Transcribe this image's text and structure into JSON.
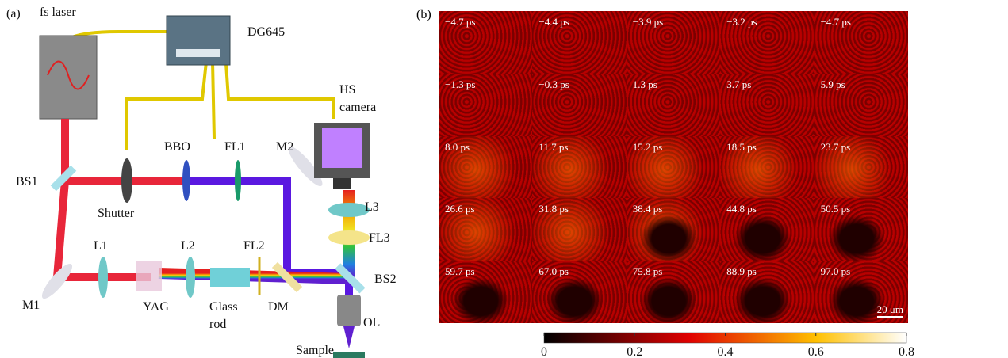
{
  "panel_a": {
    "label": "(a)",
    "components": [
      {
        "lines": [
          "fs laser"
        ]
      },
      {
        "lines": [
          "DG645"
        ]
      },
      {
        "lines": [
          "HS",
          "camera"
        ]
      },
      {
        "lines": [
          "BBO"
        ]
      },
      {
        "lines": [
          "FL1"
        ]
      },
      {
        "lines": [
          "M2"
        ]
      },
      {
        "lines": [
          "BS1"
        ]
      },
      {
        "lines": [
          "Shutter"
        ]
      },
      {
        "lines": [
          "L3"
        ]
      },
      {
        "lines": [
          "FL3"
        ]
      },
      {
        "lines": [
          "L1"
        ]
      },
      {
        "lines": [
          "L2"
        ]
      },
      {
        "lines": [
          "FL2"
        ]
      },
      {
        "lines": [
          "BS2"
        ]
      },
      {
        "lines": [
          "M1"
        ]
      },
      {
        "lines": [
          "YAG"
        ]
      },
      {
        "lines": [
          "Glass",
          "rod"
        ]
      },
      {
        "lines": [
          "DM"
        ]
      },
      {
        "lines": [
          "OL"
        ]
      },
      {
        "lines": [
          "Sample"
        ]
      }
    ]
  },
  "panel_b": {
    "label": "(b)",
    "frames": [
      "−4.7 ps",
      "−4.4 ps",
      "−3.9 ps",
      "−3.2 ps",
      "−4.7 ps",
      "−1.3 ps",
      "−0.3 ps",
      "1.3 ps",
      "3.7 ps",
      "5.9 ps",
      "8.0 ps",
      "11.7 ps",
      "15.2 ps",
      "18.5 ps",
      "23.7 ps",
      "26.6 ps",
      "31.8 ps",
      "38.4 ps",
      "44.8 ps",
      "50.5 ps",
      "59.7 ps",
      "67.0 ps",
      "75.8 ps",
      "88.9 ps",
      "97.0 ps"
    ],
    "scale_bar": "20 μm",
    "colorbar": {
      "clim": [
        0,
        0.8
      ],
      "ticks": [
        0,
        0.2,
        0.4,
        0.6,
        0.8
      ]
    }
  }
}
